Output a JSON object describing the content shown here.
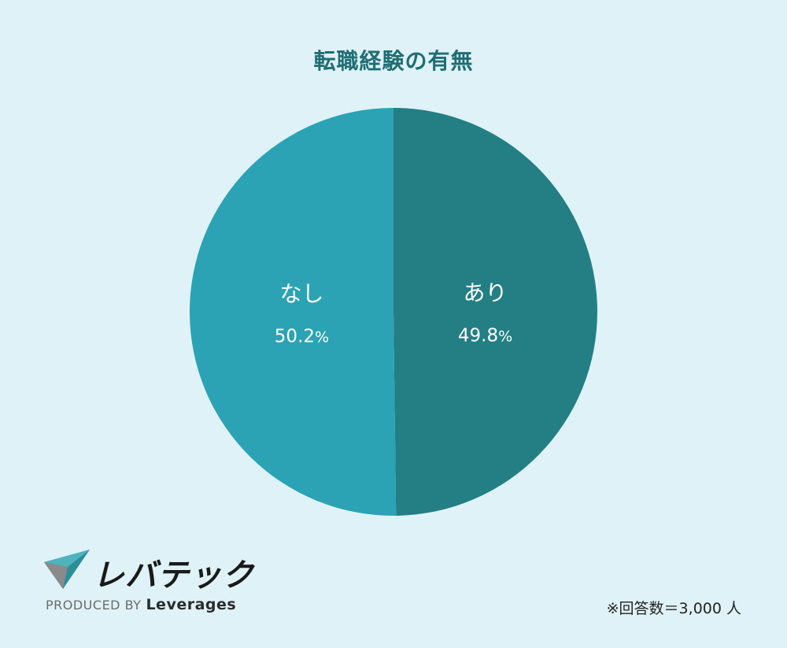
{
  "chart_data": {
    "type": "pie",
    "title": "転職経験の有無",
    "slices": [
      {
        "label": "あり",
        "value": 49.8,
        "display": "49.8",
        "unit": "%",
        "color": "#237f84"
      },
      {
        "label": "なし",
        "value": 50.2,
        "display": "50.2",
        "unit": "%",
        "color": "#2ba3b4"
      }
    ],
    "start": "12 o'clock",
    "direction": "clockwise"
  },
  "colors": {
    "background": "#dff2f8",
    "title": "#1f6e73"
  },
  "branding": {
    "logo_text": "レバテック",
    "produced_by": "PRODUCED BY",
    "brand": "Leverages",
    "logo_icon": "paper-plane-arrow-icon"
  },
  "footnote": "※回答数＝3,000 人"
}
